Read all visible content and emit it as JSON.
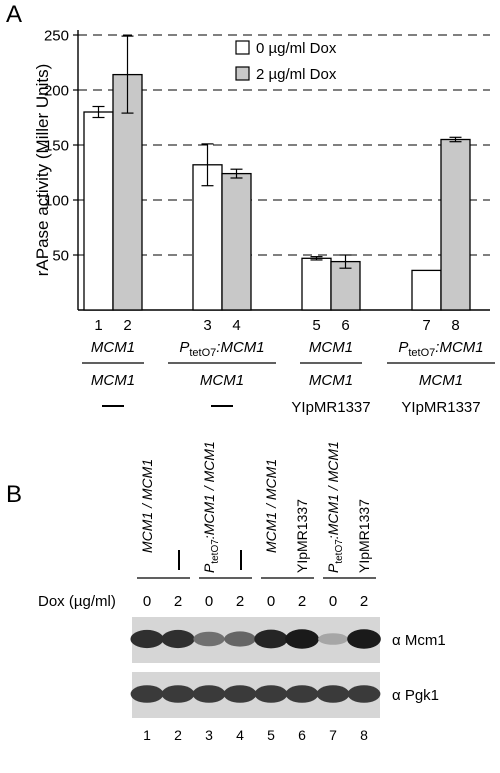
{
  "panel_a": {
    "label": "A",
    "legend": [
      {
        "label": "0 µg/ml Dox",
        "color": "#ffffff"
      },
      {
        "label": "2 µg/ml Dox",
        "color": "#c8c8c8"
      }
    ]
  },
  "chart_data": {
    "type": "bar",
    "ylabel": "rAPase activity (Miller Units)",
    "xlabel": "",
    "ylim": [
      0,
      250
    ],
    "yticks": [
      50,
      100,
      150,
      200,
      250
    ],
    "grid": "dashed horizontal",
    "legend_position": "top-right",
    "groups": [
      {
        "bar_labels": [
          "1",
          "2"
        ],
        "genotype_top": "MCM1",
        "genotype_top_ptet": false,
        "genotype_bottom": "MCM1",
        "plasmid": "—"
      },
      {
        "bar_labels": [
          "3",
          "4"
        ],
        "genotype_top": ":MCM1",
        "genotype_top_ptet": true,
        "genotype_bottom": "MCM1",
        "plasmid": "—"
      },
      {
        "bar_labels": [
          "5",
          "6"
        ],
        "genotype_top": "MCM1",
        "genotype_top_ptet": false,
        "genotype_bottom": "MCM1",
        "plasmid": "YIpMR1337"
      },
      {
        "bar_labels": [
          "7",
          "8"
        ],
        "genotype_top": ":MCM1",
        "genotype_top_ptet": true,
        "genotype_bottom": "MCM1",
        "plasmid": "YIpMR1337"
      }
    ],
    "ptet": {
      "P": "P",
      "sub": "tetO7"
    },
    "series": [
      {
        "name": "0 µg/ml Dox",
        "color": "#ffffff",
        "values": [
          180,
          132,
          47,
          36
        ],
        "errors": [
          5,
          19,
          1.5,
          0
        ]
      },
      {
        "name": "2 µg/ml Dox",
        "color": "#c8c8c8",
        "values": [
          214,
          124,
          44,
          155
        ],
        "errors": [
          35,
          4,
          6,
          2
        ]
      }
    ]
  },
  "panel_b": {
    "label": "B",
    "lane_genotypes": [
      {
        "main": "MCM1 / MCM1",
        "ptet": false,
        "sub": "",
        "dash": true,
        "plasmid": ""
      },
      {
        "main": ":MCM1 / MCM1",
        "ptet": true,
        "sub": "tetO7",
        "dash": true,
        "plasmid": ""
      },
      {
        "main": "MCM1 / MCM1",
        "ptet": false,
        "sub": "",
        "dash": false,
        "plasmid": "YIpMR1337"
      },
      {
        "main": ":MCM1 / MCM1",
        "ptet": true,
        "sub": "tetO7",
        "dash": false,
        "plasmid": "YIpMR1337"
      }
    ],
    "dox_label": "Dox (µg/ml)",
    "dox_values": [
      "0",
      "2",
      "0",
      "2",
      "0",
      "2",
      "0",
      "2"
    ],
    "lane_numbers": [
      "1",
      "2",
      "3",
      "4",
      "5",
      "6",
      "7",
      "8"
    ],
    "blots": [
      {
        "label": "α Mcm1",
        "intensities": [
          0.85,
          0.85,
          0.55,
          0.6,
          0.9,
          0.95,
          0.3,
          0.95
        ]
      },
      {
        "label": "α Pgk1",
        "intensities": [
          0.8,
          0.8,
          0.8,
          0.8,
          0.8,
          0.8,
          0.8,
          0.8
        ]
      }
    ]
  }
}
